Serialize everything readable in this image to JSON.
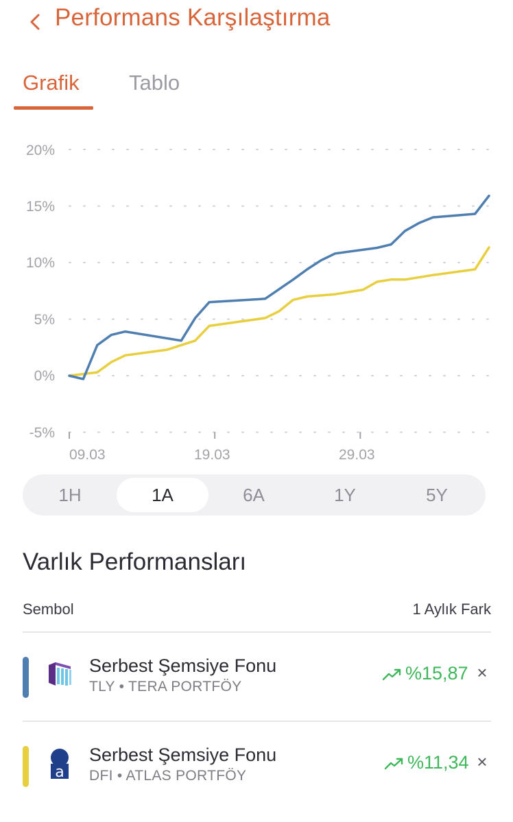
{
  "header": {
    "title": "Performans Karşılaştırma",
    "back_icon": "chevron-left-icon"
  },
  "tabs": [
    {
      "label": "Grafik",
      "active": true
    },
    {
      "label": "Tablo",
      "active": false
    }
  ],
  "colors": {
    "accent": "#d8643a",
    "series_tly": "#4f7fb0",
    "series_dfi": "#e8cf3f",
    "positive": "#3fb65a"
  },
  "chart_data": {
    "type": "line",
    "y_ticks": [
      "20%",
      "15%",
      "10%",
      "5%",
      "0%",
      "-5%"
    ],
    "x_ticks": [
      "09.03",
      "19.03",
      "29.03"
    ],
    "ylim": [
      -5,
      20
    ],
    "grid": "dotted-horizontal",
    "series": [
      {
        "key": "TLY",
        "points": [
          [
            0,
            0
          ],
          [
            1,
            -0.3
          ],
          [
            2,
            2.7
          ],
          [
            3,
            3.6
          ],
          [
            4,
            3.9
          ],
          [
            8,
            3.1
          ],
          [
            9,
            5.1
          ],
          [
            10,
            6.5
          ],
          [
            14,
            6.8
          ],
          [
            16,
            8.5
          ],
          [
            17,
            9.4
          ],
          [
            18,
            10.2
          ],
          [
            19,
            10.8
          ],
          [
            22,
            11.3
          ],
          [
            23,
            11.6
          ],
          [
            24,
            12.8
          ],
          [
            25,
            13.5
          ],
          [
            26,
            14
          ],
          [
            29,
            14.3
          ],
          [
            30,
            15.9
          ]
        ]
      },
      {
        "key": "DFI",
        "points": [
          [
            0,
            0
          ],
          [
            2,
            0.3
          ],
          [
            3,
            1.2
          ],
          [
            4,
            1.8
          ],
          [
            7,
            2.3
          ],
          [
            8,
            2.7
          ],
          [
            9,
            3.1
          ],
          [
            10,
            4.4
          ],
          [
            14,
            5.1
          ],
          [
            15,
            5.7
          ],
          [
            16,
            6.7
          ],
          [
            17,
            7
          ],
          [
            19,
            7.2
          ],
          [
            21,
            7.6
          ],
          [
            22,
            8.3
          ],
          [
            23,
            8.5
          ],
          [
            24,
            8.5
          ],
          [
            26,
            8.9
          ],
          [
            29,
            9.4
          ],
          [
            30,
            11.34
          ]
        ]
      }
    ]
  },
  "ranges": [
    {
      "label": "1H",
      "active": false
    },
    {
      "label": "1A",
      "active": true
    },
    {
      "label": "6A",
      "active": false
    },
    {
      "label": "1Y",
      "active": false
    },
    {
      "label": "5Y",
      "active": false
    }
  ],
  "section": {
    "title": "Varlık Performansları",
    "col_symbol": "Sembol",
    "col_diff": "1 Aylık Fark"
  },
  "assets": [
    {
      "name": "Serbest Şemsiye Fonu",
      "subtitle": "TLY • TERA PORTFÖY",
      "change": "%15,87",
      "color": "#4f7fb0",
      "logo": "tera-portfoy-logo"
    },
    {
      "name": "Serbest Şemsiye Fonu",
      "subtitle": "DFI • ATLAS PORTFÖY",
      "change": "%11,34",
      "color": "#e8cf3f",
      "logo": "atlas-portfoy-logo"
    }
  ]
}
